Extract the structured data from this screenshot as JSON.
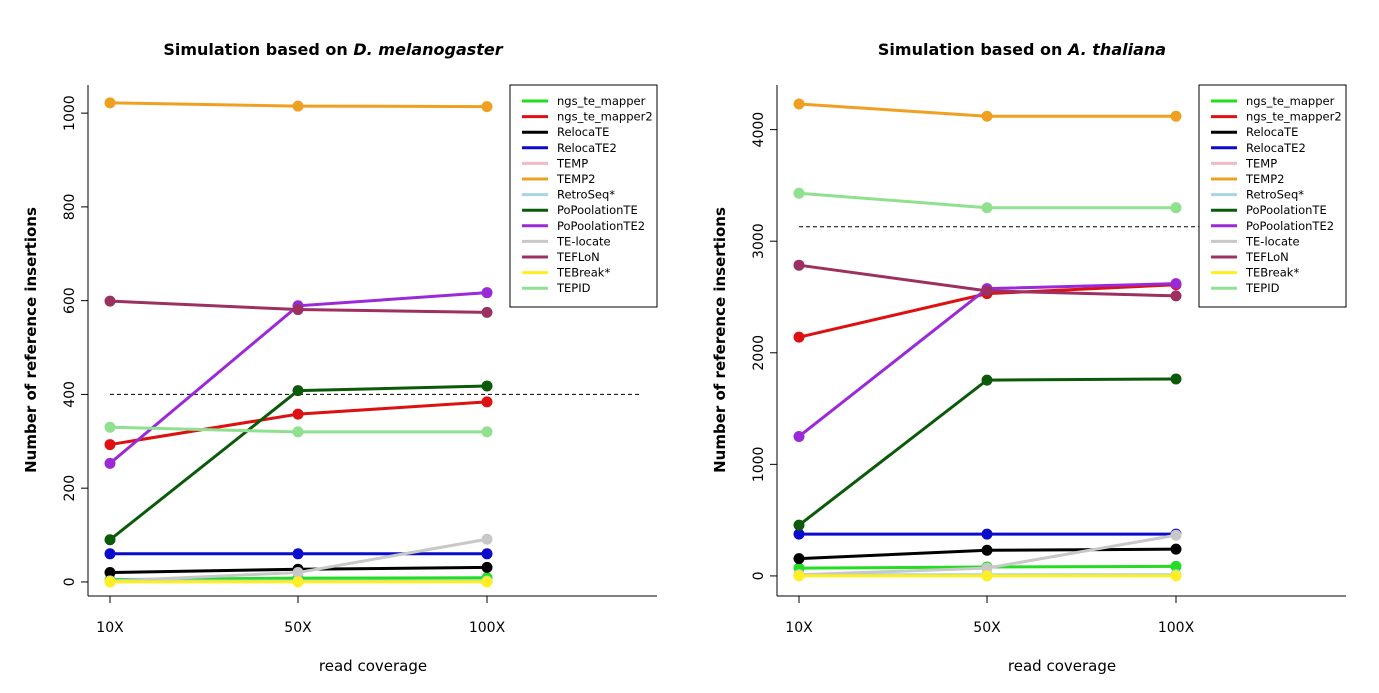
{
  "figure": {
    "xlabel": "read coverage",
    "ylabel": "Number of reference insertions"
  },
  "chart_data": [
    {
      "type": "line",
      "title_prefix": "Simulation based on ",
      "title_species": "D. melanogaster",
      "xlabel": "read coverage",
      "ylabel": "Number of reference insertions",
      "x": [
        "10X",
        "50X",
        "100X"
      ],
      "ylim": [
        -30,
        1060
      ],
      "yticks": [
        0,
        200,
        400,
        600,
        800,
        1000
      ],
      "reference_line": 400,
      "legend_position": "top-right",
      "series": [
        {
          "name": "ngs_te_mapper",
          "color": "#22dd22",
          "values": [
            5,
            8,
            9
          ]
        },
        {
          "name": "ngs_te_mapper2",
          "color": "#dd1111",
          "values": [
            293,
            358,
            384
          ]
        },
        {
          "name": "RelocaTE",
          "color": "#000000",
          "values": [
            20,
            27,
            31
          ]
        },
        {
          "name": "RelocaTE2",
          "color": "#0b0bcc",
          "values": [
            60,
            60,
            60
          ]
        },
        {
          "name": "TEMP",
          "color": "#f4b8c8",
          "values": [
            1,
            1,
            1
          ]
        },
        {
          "name": "TEMP2",
          "color": "#f0a020",
          "values": [
            1022,
            1015,
            1014
          ]
        },
        {
          "name": "RetroSeq*",
          "color": "#a8d4e6",
          "values": [
            2,
            2,
            2
          ]
        },
        {
          "name": "PoPoolationTE",
          "color": "#0a5a0a",
          "values": [
            90,
            408,
            418
          ]
        },
        {
          "name": "PoPoolationTE2",
          "color": "#9a2ad8",
          "values": [
            253,
            589,
            617
          ]
        },
        {
          "name": "TE-locate",
          "color": "#c8c8c8",
          "values": [
            2,
            20,
            91
          ]
        },
        {
          "name": "TEFLoN",
          "color": "#9c3060",
          "values": [
            599,
            581,
            575
          ]
        },
        {
          "name": "TEBreak*",
          "color": "#ffee22",
          "values": [
            0,
            0,
            0
          ]
        },
        {
          "name": "TEPID",
          "color": "#8fe08f",
          "values": [
            330,
            320,
            320
          ]
        }
      ]
    },
    {
      "type": "line",
      "title_prefix": "Simulation based on ",
      "title_species": "A. thaliana",
      "xlabel": "read coverage",
      "ylabel": "Number of reference insertions",
      "x": [
        "10X",
        "50X",
        "100X"
      ],
      "ylim": [
        -180,
        4400
      ],
      "yticks": [
        0,
        1000,
        2000,
        3000,
        4000
      ],
      "reference_line": 3130,
      "legend_position": "top-right",
      "series": [
        {
          "name": "ngs_te_mapper",
          "color": "#22dd22",
          "values": [
            70,
            80,
            85
          ]
        },
        {
          "name": "ngs_te_mapper2",
          "color": "#dd1111",
          "values": [
            2140,
            2530,
            2610
          ]
        },
        {
          "name": "RelocaTE",
          "color": "#000000",
          "values": [
            155,
            230,
            240
          ]
        },
        {
          "name": "RelocaTE2",
          "color": "#0b0bcc",
          "values": [
            375,
            375,
            375
          ]
        },
        {
          "name": "TEMP",
          "color": "#f4b8c8",
          "values": [
            5,
            5,
            5
          ]
        },
        {
          "name": "TEMP2",
          "color": "#f0a020",
          "values": [
            4230,
            4120,
            4120
          ]
        },
        {
          "name": "RetroSeq*",
          "color": "#a8d4e6",
          "values": [
            10,
            10,
            10
          ]
        },
        {
          "name": "PoPoolationTE",
          "color": "#0a5a0a",
          "values": [
            455,
            1755,
            1765
          ]
        },
        {
          "name": "PoPoolationTE2",
          "color": "#9a2ad8",
          "values": [
            1250,
            2575,
            2620
          ]
        },
        {
          "name": "TE-locate",
          "color": "#c8c8c8",
          "values": [
            10,
            70,
            365
          ]
        },
        {
          "name": "TEFLoN",
          "color": "#9c3060",
          "values": [
            2785,
            2555,
            2510
          ]
        },
        {
          "name": "TEBreak*",
          "color": "#ffee22",
          "values": [
            0,
            0,
            0
          ]
        },
        {
          "name": "TEPID",
          "color": "#8fe08f",
          "values": [
            3430,
            3300,
            3300
          ]
        }
      ]
    }
  ]
}
